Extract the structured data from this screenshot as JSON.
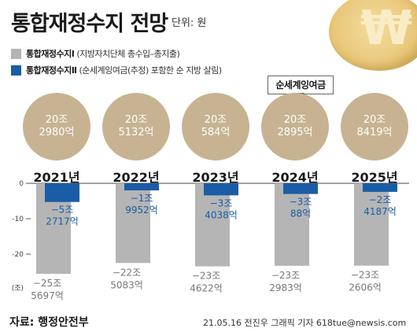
{
  "header": {
    "title": "통합재정수지 전망",
    "unit": "단위: 원"
  },
  "legend": [
    {
      "name": "통합재정수지Ⅰ",
      "desc": "(지방자치단체 총수입–총지출)",
      "color": "#b5b5b5"
    },
    {
      "name": "통합재정수지Ⅱ",
      "desc": "(순세계잉여금(추정) 포함한 순 지방 살림)",
      "color": "#1a5da6"
    }
  ],
  "annotation": "순세계잉여금",
  "coin_icon": "won-coin-icon",
  "chart_data": {
    "type": "bar",
    "categories": [
      "2021년",
      "2022년",
      "2023년",
      "2024년",
      "2025년"
    ],
    "surplus": {
      "values": [
        20.298,
        20.5132,
        20.0584,
        20.2895,
        20.8419
      ],
      "labels": [
        [
          "20조",
          "2980억"
        ],
        [
          "20조",
          "5132억"
        ],
        [
          "20조",
          "584억"
        ],
        [
          "20조",
          "2895억"
        ],
        [
          "20조",
          "8419억"
        ]
      ],
      "color": "#c7b392"
    },
    "series": [
      {
        "name": "통합재정수지Ⅰ",
        "color": "#b5b5b5",
        "values": [
          -25.5697,
          -22.5083,
          -23.4622,
          -23.2983,
          -23.2606
        ],
        "labels": [
          [
            "−25조",
            "5697억"
          ],
          [
            "−22조",
            "5083억"
          ],
          [
            "−23조",
            "4622억"
          ],
          [
            "−23조",
            "2983억"
          ],
          [
            "−23조",
            "2606억"
          ]
        ]
      },
      {
        "name": "통합재정수지Ⅱ",
        "color": "#1a5da6",
        "values": [
          -5.2717,
          -1.9952,
          -3.4038,
          -3.0088,
          -2.4187
        ],
        "labels": [
          [
            "−5조",
            "2717억"
          ],
          [
            "−1조",
            "9952억"
          ],
          [
            "−3조",
            "4038억"
          ],
          [
            "−3조",
            "88억"
          ],
          [
            "−2조",
            "4187억"
          ]
        ]
      }
    ],
    "yticks": [
      0,
      -10,
      -20
    ],
    "yticklabels": [
      "0",
      "-10",
      "-20"
    ],
    "yunit": "(조)",
    "ylim": [
      -28,
      0
    ]
  },
  "footer": {
    "source": "자료: 행정안전부",
    "credit": "21.05.16 전진우 그래픽 기자 618tue@newsis.com"
  }
}
